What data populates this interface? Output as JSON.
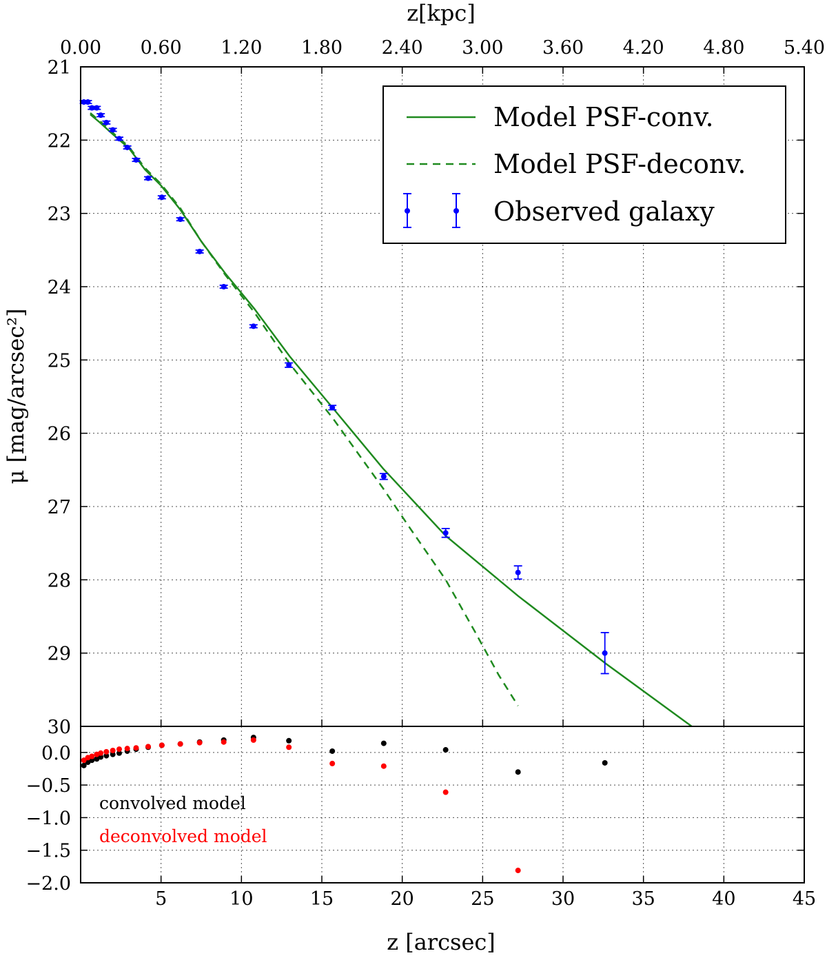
{
  "chart_data": [
    {
      "type": "line",
      "panel": "main",
      "title": "",
      "xlabel": "z [arcsec]",
      "ylabel": "μ [mag/arcsec²]",
      "top_xlabel": "z[kpc]",
      "xlim": [
        0,
        45
      ],
      "ylim": [
        30,
        21
      ],
      "y_inverted": true,
      "grid": true,
      "yticks": [
        "21",
        "22",
        "23",
        "24",
        "25",
        "26",
        "27",
        "28",
        "29",
        "30"
      ],
      "top_xticks": [
        "0.00",
        "0.60",
        "1.20",
        "1.80",
        "2.40",
        "3.00",
        "3.60",
        "4.20",
        "4.80",
        "5.40"
      ],
      "top_xticks_arcsec": [
        0,
        5,
        10,
        15,
        20,
        25,
        30,
        35,
        40,
        45
      ],
      "legend_position": "top-right",
      "series": [
        {
          "name": "Model PSF-conv.",
          "style": "solid",
          "color": "#1f8a1f",
          "x": [
            0.6,
            1.2,
            2.0,
            3.0,
            4.0,
            5.0,
            6.2,
            7.5,
            9.0,
            10.8,
            13.0,
            15.7,
            18.8,
            22.7,
            27.2,
            32.7,
            38.0
          ],
          "y": [
            21.65,
            21.76,
            21.92,
            22.11,
            22.4,
            22.62,
            22.95,
            23.38,
            23.82,
            24.3,
            24.95,
            25.66,
            26.48,
            27.4,
            28.22,
            29.15,
            30.0
          ]
        },
        {
          "name": "Model PSF-deconv.",
          "style": "dashed",
          "color": "#1f8a1f",
          "x": [
            0.6,
            1.2,
            2.0,
            3.0,
            4.0,
            5.0,
            6.2,
            7.5,
            9.0,
            10.8,
            13.0,
            15.7,
            18.8,
            20.5,
            22.7,
            24.5,
            26.0,
            27.2
          ],
          "y": [
            21.63,
            21.74,
            21.9,
            22.09,
            22.38,
            22.6,
            22.93,
            23.38,
            23.84,
            24.35,
            25.05,
            25.8,
            26.75,
            27.3,
            28.0,
            28.7,
            29.3,
            29.72
          ]
        },
        {
          "name": "Observed galaxy",
          "style": "errorbar",
          "color": "#0000ff",
          "x": [
            0.2,
            0.45,
            0.7,
            1.0,
            1.25,
            1.6,
            2.0,
            2.4,
            2.9,
            3.45,
            4.2,
            5.05,
            6.2,
            7.4,
            8.9,
            10.75,
            12.95,
            15.65,
            18.85,
            22.7,
            27.2,
            32.6
          ],
          "y": [
            21.48,
            21.48,
            21.56,
            21.56,
            21.66,
            21.76,
            21.86,
            21.98,
            22.1,
            22.27,
            22.52,
            22.78,
            23.08,
            23.52,
            24.0,
            24.54,
            25.07,
            25.65,
            26.59,
            27.36,
            27.9,
            29.0
          ],
          "err": [
            0.02,
            0.02,
            0.02,
            0.02,
            0.02,
            0.02,
            0.02,
            0.02,
            0.02,
            0.02,
            0.02,
            0.02,
            0.02,
            0.02,
            0.02,
            0.02,
            0.03,
            0.03,
            0.04,
            0.06,
            0.09,
            0.28
          ]
        }
      ]
    },
    {
      "type": "scatter",
      "panel": "residuals",
      "xlabel": "z [arcsec]",
      "ylabel": "",
      "xlim": [
        0,
        45
      ],
      "ylim": [
        -2.0,
        0.4
      ],
      "grid": true,
      "xticks": [
        "5",
        "10",
        "15",
        "20",
        "25",
        "30",
        "35",
        "40",
        "45"
      ],
      "xtick_values": [
        5,
        10,
        15,
        20,
        25,
        30,
        35,
        40,
        45
      ],
      "yticks": [
        "0.0",
        "−0.5",
        "−1.0",
        "−1.5",
        "−2.0"
      ],
      "ytick_values": [
        0.0,
        -0.5,
        -1.0,
        -1.5,
        -2.0
      ],
      "series": [
        {
          "name": "convolved model",
          "color": "#000000",
          "x": [
            0.2,
            0.45,
            0.7,
            1.0,
            1.25,
            1.6,
            2.0,
            2.4,
            2.9,
            3.45,
            4.2,
            5.05,
            6.2,
            7.4,
            8.9,
            10.75,
            12.95,
            15.65,
            18.85,
            22.7,
            27.2,
            32.6
          ],
          "y": [
            -0.2,
            -0.15,
            -0.12,
            -0.1,
            -0.07,
            -0.05,
            -0.03,
            -0.01,
            0.02,
            0.05,
            0.08,
            0.11,
            0.13,
            0.16,
            0.19,
            0.23,
            0.18,
            0.02,
            0.14,
            0.04,
            -0.3,
            -0.16
          ]
        },
        {
          "name": "deconvolved model",
          "color": "#ff0000",
          "x": [
            0.2,
            0.45,
            0.7,
            1.0,
            1.25,
            1.6,
            2.0,
            2.4,
            2.9,
            3.45,
            4.2,
            5.05,
            6.2,
            7.4,
            8.9,
            10.75,
            12.95,
            15.65,
            18.85,
            22.7,
            27.2,
            32.6
          ],
          "y": [
            -0.12,
            -0.08,
            -0.06,
            -0.03,
            -0.01,
            0.01,
            0.03,
            0.05,
            0.06,
            0.07,
            0.09,
            0.11,
            0.13,
            0.15,
            0.16,
            0.19,
            0.08,
            -0.17,
            -0.21,
            -0.61,
            -1.81,
            null
          ]
        }
      ],
      "annotations": [
        {
          "text": "convolved model",
          "color": "#000000"
        },
        {
          "text": "deconvolved model",
          "color": "#ff0000"
        }
      ]
    }
  ]
}
